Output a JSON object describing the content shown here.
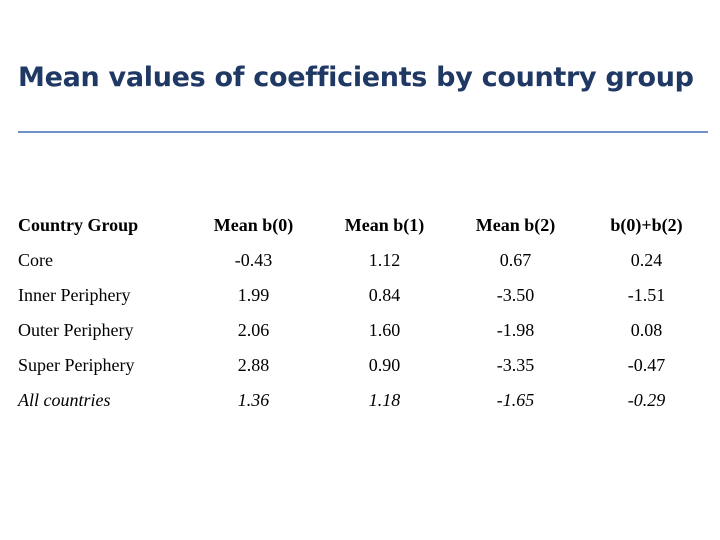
{
  "title": "Mean values of coefficients by country group",
  "table": {
    "headers": [
      "Country Group",
      "Mean b(0)",
      "Mean b(1)",
      "Mean b(2)",
      "b(0)+b(2)"
    ],
    "rows": [
      [
        "Core",
        "-0.43",
        "1.12",
        "0.67",
        "0.24"
      ],
      [
        "Inner Periphery",
        "1.99",
        "0.84",
        "-3.50",
        "-1.51"
      ],
      [
        "Outer Periphery",
        "2.06",
        "1.60",
        "-1.98",
        "0.08"
      ],
      [
        "Super Periphery",
        "2.88",
        "0.90",
        "-3.35",
        "-0.47"
      ]
    ],
    "total_row": [
      "All countries",
      "1.36",
      "1.18",
      "-1.65",
      "-0.29"
    ]
  },
  "colors": {
    "title": "#1f3864",
    "rule": "#6f93c8"
  }
}
